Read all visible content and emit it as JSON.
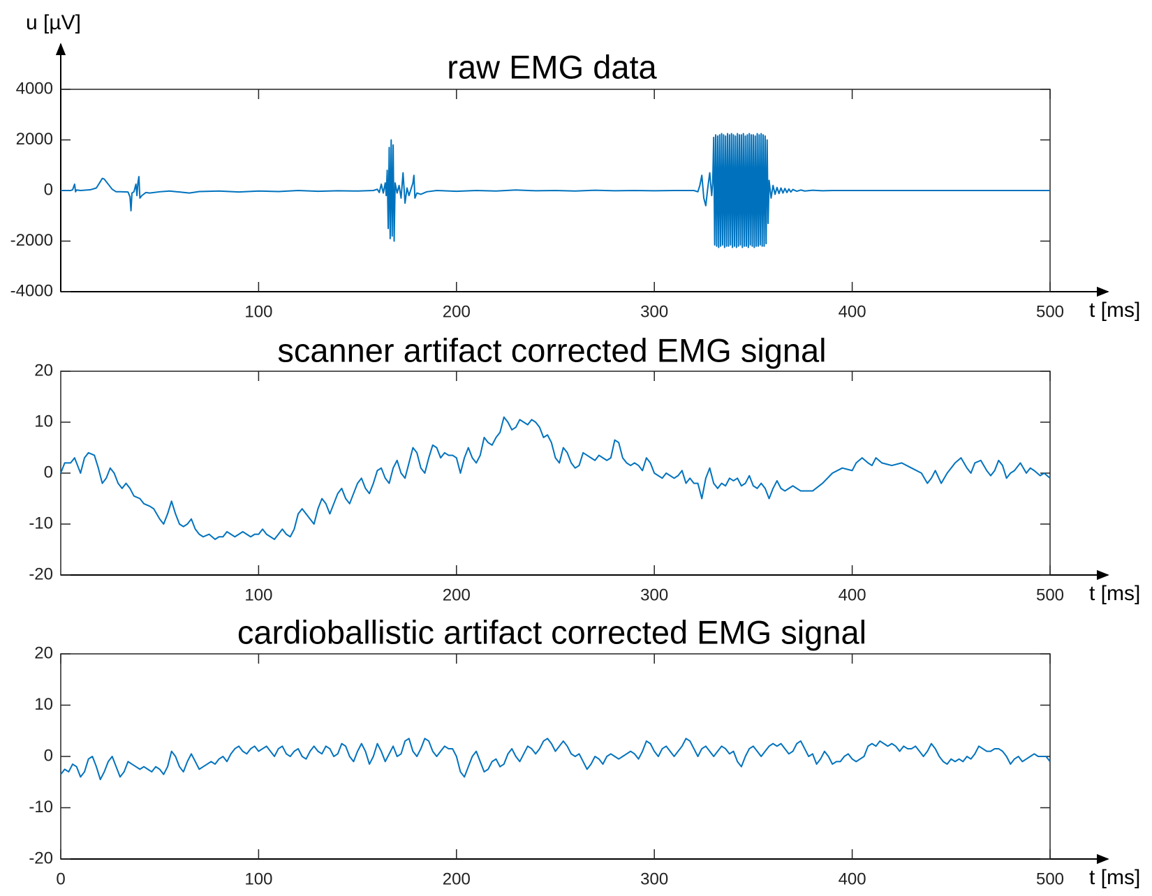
{
  "chart_data": [
    {
      "type": "line",
      "title": "raw EMG data",
      "y_label": "u [µV]",
      "x_label": "t [ms]",
      "color": "#0072bd",
      "xlim": [
        0,
        500
      ],
      "xticks": [
        100,
        200,
        300,
        400,
        500
      ],
      "ylim": [
        -4000,
        4000
      ],
      "yticks": [
        -4000,
        -2000,
        0,
        2000,
        4000
      ],
      "x": [
        0,
        5,
        6,
        7,
        7.5,
        8,
        10,
        15,
        18,
        20,
        21,
        22,
        24,
        26,
        28,
        30,
        34,
        35,
        35.5,
        36,
        37,
        38,
        38.5,
        39,
        39.5,
        40,
        41,
        43,
        45,
        50,
        55,
        60,
        65,
        70,
        80,
        90,
        100,
        110,
        120,
        130,
        140,
        150,
        158,
        160,
        161,
        162,
        163,
        164,
        164.5,
        165,
        165.5,
        166,
        166.5,
        167,
        167.5,
        168,
        168.5,
        169,
        170,
        171,
        172,
        173,
        174,
        175,
        176,
        177,
        178,
        178.5,
        179,
        180,
        182,
        185,
        190,
        200,
        210,
        220,
        230,
        240,
        250,
        260,
        270,
        280,
        290,
        300,
        310,
        320,
        322,
        323,
        324,
        325,
        326,
        327,
        328,
        329,
        329.5,
        330,
        330.5,
        331,
        331.5,
        332,
        332.5,
        333,
        333.5,
        334,
        334.5,
        335,
        335.5,
        336,
        336.5,
        337,
        337.5,
        338,
        338.5,
        339,
        339.5,
        340,
        340.5,
        341,
        341.5,
        342,
        342.5,
        343,
        343.5,
        344,
        344.5,
        345,
        345.5,
        346,
        346.5,
        347,
        347.5,
        348,
        348.5,
        349,
        349.5,
        350,
        350.5,
        351,
        351.5,
        352,
        352.5,
        353,
        353.5,
        354,
        354.5,
        355,
        355.5,
        356,
        356.5,
        357,
        357.5,
        358,
        359,
        360,
        361,
        362,
        363,
        364,
        365,
        366,
        367,
        368,
        369,
        370,
        372,
        374,
        376,
        380,
        385,
        390,
        400,
        420,
        450,
        480,
        500
      ],
      "values": [
        0,
        0,
        30,
        250,
        -50,
        20,
        0,
        30,
        100,
        350,
        480,
        450,
        250,
        50,
        -50,
        -50,
        -60,
        -250,
        -800,
        -100,
        -50,
        250,
        -200,
        300,
        550,
        -300,
        -200,
        -80,
        -100,
        -50,
        -20,
        -60,
        -100,
        -40,
        -20,
        -60,
        -20,
        -40,
        0,
        -30,
        -10,
        -20,
        0,
        50,
        -80,
        250,
        -100,
        300,
        -200,
        800,
        -1500,
        1700,
        -1900,
        2000,
        -1800,
        1800,
        -2000,
        300,
        -100,
        200,
        -300,
        700,
        -500,
        100,
        -200,
        50,
        300,
        600,
        -300,
        -100,
        -150,
        -50,
        0,
        -30,
        0,
        -20,
        20,
        -10,
        0,
        -20,
        10,
        -10,
        0,
        -10,
        0,
        0,
        -50,
        200,
        600,
        -300,
        -600,
        100,
        700,
        -200,
        300,
        2100,
        -2150,
        2200,
        -2200,
        2150,
        -2250,
        2200,
        -2200,
        2250,
        -2150,
        2200,
        -2250,
        2150,
        -2200,
        2250,
        -2200,
        2200,
        -2150,
        2250,
        -2250,
        2200,
        -2200,
        2150,
        -2250,
        2250,
        -2200,
        2200,
        -2150,
        2200,
        -2250,
        2250,
        -2200,
        2150,
        -2200,
        2200,
        -2250,
        2250,
        -2150,
        2200,
        -2200,
        2200,
        -2250,
        2150,
        -2200,
        2250,
        -2200,
        2200,
        -2150,
        2250,
        -2200,
        2200,
        -2200,
        2150,
        -2100,
        2000,
        -1300,
        400,
        -300,
        200,
        -150,
        120,
        -120,
        100,
        -100,
        80,
        -80,
        60,
        -60,
        40,
        -30,
        20,
        -20,
        10,
        -10,
        0,
        0,
        0,
        0,
        0,
        0
      ]
    },
    {
      "type": "line",
      "title": "scanner artifact corrected EMG signal",
      "x_label": "t [ms]",
      "color": "#0072bd",
      "xlim": [
        0,
        500
      ],
      "xticks": [
        100,
        200,
        300,
        400,
        500
      ],
      "ylim": [
        -20,
        20
      ],
      "yticks": [
        -20,
        -10,
        0,
        10,
        20
      ],
      "x": [
        0,
        2,
        5,
        7,
        9,
        10,
        12,
        14,
        17,
        19,
        21,
        23,
        25,
        27,
        29,
        31,
        33,
        35,
        37,
        40,
        42,
        45,
        47,
        50,
        52,
        54,
        56,
        58,
        60,
        62,
        64,
        66,
        68,
        70,
        72,
        75,
        78,
        80,
        82,
        84,
        86,
        88,
        90,
        92,
        94,
        96,
        98,
        100,
        102,
        104,
        106,
        108,
        110,
        112,
        114,
        116,
        118,
        120,
        122,
        124,
        126,
        128,
        130,
        132,
        134,
        136,
        138,
        140,
        142,
        144,
        146,
        148,
        150,
        152,
        154,
        156,
        158,
        160,
        162,
        164,
        166,
        168,
        170,
        172,
        174,
        176,
        178,
        180,
        182,
        184,
        186,
        188,
        190,
        192,
        194,
        196,
        198,
        200,
        202,
        204,
        206,
        208,
        210,
        212,
        214,
        216,
        218,
        220,
        222,
        224,
        226,
        228,
        230,
        232,
        234,
        236,
        238,
        240,
        242,
        244,
        246,
        248,
        250,
        252,
        254,
        256,
        258,
        260,
        262,
        264,
        266,
        268,
        270,
        272,
        274,
        276,
        278,
        280,
        282,
        284,
        286,
        288,
        290,
        292,
        294,
        296,
        298,
        300,
        302,
        304,
        306,
        308,
        310,
        312,
        314,
        316,
        318,
        320,
        322,
        324,
        326,
        328,
        330,
        332,
        334,
        336,
        338,
        340,
        342,
        344,
        346,
        348,
        350,
        352,
        354,
        356,
        358,
        360,
        362,
        364,
        366,
        368,
        370,
        374,
        380,
        385,
        390,
        395,
        400,
        402,
        405,
        408,
        410,
        412,
        415,
        420,
        425,
        430,
        435,
        438,
        440,
        442,
        445,
        448,
        450,
        452,
        455,
        458,
        460,
        462,
        465,
        468,
        470,
        472,
        474,
        476,
        478,
        480,
        482,
        485,
        488,
        490,
        492,
        495,
        497,
        500
      ],
      "values": [
        0,
        2,
        2,
        3,
        1,
        0,
        3,
        4,
        3.5,
        1,
        -2,
        -1,
        1,
        0,
        -2,
        -3,
        -2,
        -3,
        -4.5,
        -5,
        -6,
        -6.5,
        -7,
        -9,
        -10,
        -8,
        -5.5,
        -8,
        -10,
        -10.5,
        -10,
        -9,
        -11,
        -12,
        -12.5,
        -12,
        -13,
        -12.5,
        -12.5,
        -11.5,
        -12,
        -12.5,
        -12,
        -11.5,
        -12,
        -12.5,
        -12,
        -12,
        -11,
        -12,
        -12.5,
        -13,
        -12,
        -11,
        -12,
        -12.5,
        -11,
        -8,
        -7,
        -8,
        -9,
        -10,
        -7,
        -5,
        -6,
        -8,
        -6,
        -4,
        -3,
        -5,
        -6,
        -4,
        -2,
        -1,
        -3,
        -4,
        -2,
        0.5,
        1,
        -1,
        -2,
        1,
        2.5,
        0,
        -1,
        2,
        5,
        4,
        1,
        0,
        3,
        5.5,
        5,
        3,
        4,
        3.5,
        3.5,
        3,
        0,
        3,
        5,
        3,
        2,
        3.5,
        7,
        6,
        5.5,
        7,
        8,
        11,
        10,
        8.5,
        9,
        10.5,
        10,
        9.5,
        10.5,
        10,
        9,
        7,
        7.5,
        6,
        3,
        2,
        5,
        4,
        2,
        1,
        1.5,
        4,
        3.5,
        3,
        2.5,
        3.5,
        3,
        2.5,
        3,
        6.5,
        6,
        3,
        2,
        1.5,
        2,
        1.5,
        0.5,
        3,
        2,
        0,
        -0.5,
        -1,
        0,
        -0.5,
        -1,
        -0.5,
        0.5,
        -2,
        -1,
        -2,
        -2,
        -5,
        -1,
        1,
        -2,
        -3,
        -2,
        -2.5,
        -1,
        -1.5,
        -1,
        -2.5,
        -2,
        -0.5,
        -2.5,
        -3,
        -2,
        -3,
        -5,
        -3,
        -1.5,
        -3,
        -3.5,
        -3,
        -2.5,
        -3.5,
        -3.5,
        -2,
        0,
        1,
        0.5,
        2,
        3,
        2,
        1.5,
        3,
        2,
        1.5,
        2,
        1,
        0,
        -2,
        -1,
        0.5,
        -2,
        0,
        1,
        2,
        3,
        1,
        0,
        2,
        2.5,
        0.5,
        -0.5,
        0.5,
        2.5,
        1.5,
        -1,
        0,
        0.5,
        2,
        0,
        1,
        0.5,
        -0.5,
        0,
        -1
      ]
    },
    {
      "type": "line",
      "title": "cardioballistic artifact corrected EMG signal",
      "x_label": "t [ms]",
      "color": "#0072bd",
      "xlim": [
        0,
        500
      ],
      "xticks": [
        0,
        100,
        200,
        300,
        400,
        500
      ],
      "ylim": [
        -20,
        20
      ],
      "yticks": [
        -20,
        -10,
        0,
        10,
        20
      ],
      "x": [
        0,
        2,
        4,
        6,
        8,
        10,
        12,
        14,
        16,
        18,
        20,
        22,
        24,
        26,
        28,
        30,
        32,
        34,
        36,
        38,
        40,
        42,
        44,
        46,
        48,
        50,
        52,
        54,
        56,
        58,
        60,
        62,
        64,
        66,
        68,
        70,
        72,
        74,
        76,
        78,
        80,
        82,
        84,
        86,
        88,
        90,
        92,
        94,
        96,
        98,
        100,
        102,
        104,
        106,
        108,
        110,
        112,
        114,
        116,
        118,
        120,
        122,
        124,
        126,
        128,
        130,
        132,
        134,
        136,
        138,
        140,
        142,
        144,
        146,
        148,
        150,
        152,
        154,
        156,
        158,
        160,
        162,
        164,
        166,
        168,
        170,
        172,
        174,
        176,
        178,
        180,
        182,
        184,
        186,
        188,
        190,
        192,
        194,
        196,
        198,
        200,
        202,
        204,
        206,
        208,
        210,
        212,
        214,
        216,
        218,
        220,
        222,
        224,
        226,
        228,
        230,
        232,
        234,
        236,
        238,
        240,
        242,
        244,
        246,
        248,
        250,
        252,
        254,
        256,
        258,
        260,
        262,
        264,
        266,
        268,
        270,
        272,
        274,
        276,
        278,
        280,
        282,
        284,
        286,
        288,
        290,
        292,
        294,
        296,
        298,
        300,
        302,
        304,
        306,
        308,
        310,
        312,
        314,
        316,
        318,
        320,
        322,
        324,
        326,
        328,
        330,
        332,
        334,
        336,
        338,
        340,
        342,
        344,
        346,
        348,
        350,
        352,
        354,
        356,
        358,
        360,
        362,
        364,
        366,
        368,
        370,
        372,
        374,
        376,
        378,
        380,
        382,
        384,
        386,
        388,
        390,
        392,
        394,
        396,
        398,
        400,
        402,
        404,
        406,
        408,
        410,
        412,
        414,
        416,
        418,
        420,
        422,
        424,
        426,
        428,
        430,
        432,
        434,
        436,
        438,
        440,
        442,
        444,
        446,
        448,
        450,
        452,
        454,
        456,
        458,
        460,
        462,
        464,
        466,
        468,
        470,
        472,
        474,
        476,
        478,
        480,
        482,
        484,
        486,
        488,
        490,
        492,
        494,
        496,
        498,
        500
      ],
      "values": [
        -3.5,
        -2.5,
        -3,
        -1.5,
        -2,
        -4,
        -3,
        -0.5,
        0,
        -2,
        -4.5,
        -3,
        -1,
        0,
        -2,
        -4,
        -3,
        -1,
        -1.5,
        -2,
        -2.5,
        -2,
        -2.5,
        -3,
        -2,
        -2.5,
        -3.5,
        -2,
        1,
        0,
        -2,
        -3,
        -1,
        0.5,
        -1,
        -2.5,
        -2,
        -1.5,
        -1,
        -1.5,
        -0.5,
        0,
        -1,
        0.5,
        1.5,
        2,
        1,
        0.5,
        1.5,
        2,
        1,
        1.5,
        2,
        1,
        0,
        1.5,
        2,
        0.5,
        0,
        1,
        1.5,
        0,
        -0.5,
        1,
        2,
        1,
        0.5,
        2,
        1.5,
        0,
        0.5,
        2.5,
        2,
        0,
        -1,
        1,
        2.5,
        1,
        -1.5,
        0,
        2.5,
        1,
        -1,
        0.5,
        2,
        0,
        0.5,
        3,
        3.5,
        1,
        0,
        1.5,
        3.5,
        3,
        1,
        0,
        1,
        2,
        1.5,
        1.5,
        0,
        -3,
        -4,
        -2,
        0,
        1,
        -1,
        -3,
        -2.5,
        -1,
        -0.5,
        -2,
        -1.5,
        0.5,
        1.5,
        0,
        -1,
        0.5,
        2,
        1.5,
        0.5,
        1.5,
        3,
        3.5,
        2.5,
        1,
        2,
        3,
        2,
        0.5,
        0,
        0.5,
        -1,
        -2.5,
        -1.5,
        0,
        -0.5,
        -1.5,
        0,
        0.5,
        0,
        -0.5,
        0,
        0.5,
        1,
        0.5,
        -0.5,
        1,
        3,
        2.5,
        1,
        0,
        1.5,
        2,
        1,
        0,
        1,
        2,
        3.5,
        3,
        1.5,
        0,
        1.5,
        2,
        1,
        0,
        1,
        2,
        1.5,
        0.5,
        1,
        -1,
        -2,
        0,
        1.5,
        2,
        1,
        0,
        1,
        2,
        2.5,
        2,
        2.5,
        1.5,
        0.5,
        1,
        2.5,
        3,
        1.5,
        0,
        0.5,
        -1.5,
        -0.5,
        1,
        0,
        -1.5,
        -1,
        -1,
        0,
        0.5,
        -0.5,
        -1,
        -0.5,
        0,
        2,
        2.5,
        2,
        3,
        2.5,
        2,
        2.5,
        2,
        1,
        2,
        1.5,
        1.5,
        2,
        1,
        0,
        1,
        2.5,
        1.5,
        0,
        -1,
        -1.5,
        -0.5,
        -1,
        -0.5,
        -1,
        0,
        -0.5,
        0.5,
        2,
        1.5,
        1,
        1,
        1.5,
        1.5,
        1,
        0,
        -1.5,
        -0.5,
        0,
        -1,
        -0.5,
        0,
        0.5,
        0,
        0,
        0,
        -1
      ]
    }
  ]
}
